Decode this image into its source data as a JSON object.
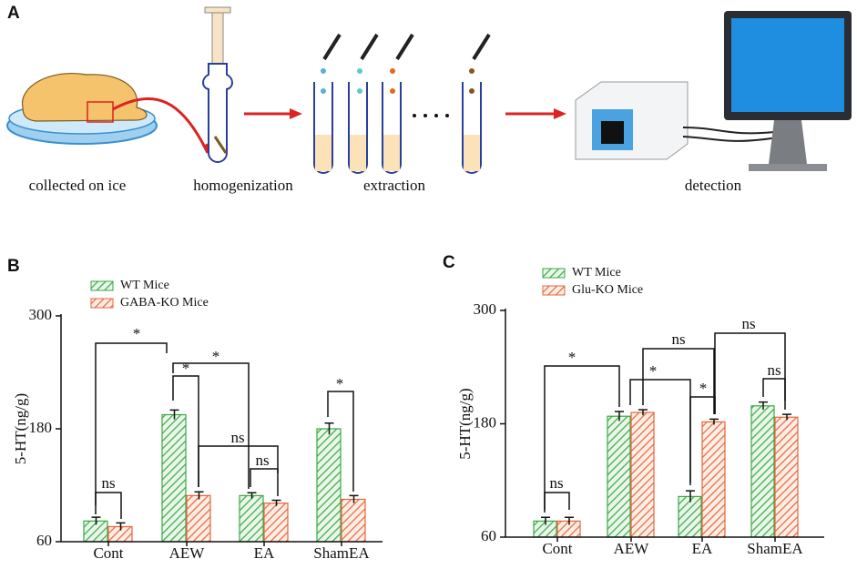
{
  "figure": {
    "panel_a": {
      "label": "A",
      "steps": [
        "collected on ice",
        "homogenization",
        "extraction",
        "detection"
      ]
    }
  },
  "chart_data": [
    {
      "type": "bar",
      "panel_label": "B",
      "ylabel": "5-HT(ng/g)",
      "categories": [
        "Cont",
        "AEW",
        "EA",
        "ShamEA"
      ],
      "series": [
        {
          "name": "WT Mice",
          "color": "#3aa845",
          "values": [
            82,
            195,
            109,
            180
          ],
          "errors": [
            4,
            5,
            3,
            6
          ]
        },
        {
          "name": "GABA-KO Mice",
          "color": "#e8643a",
          "values": [
            76,
            109,
            101,
            105
          ],
          "errors": [
            4,
            4,
            3,
            4
          ]
        }
      ],
      "ylim": [
        60,
        300
      ],
      "yticks": [
        60,
        180,
        300
      ],
      "annotations": [
        "*",
        "*",
        "*",
        "ns",
        "ns",
        "ns",
        "*"
      ]
    },
    {
      "type": "bar",
      "panel_label": "C",
      "ylabel": "5-HT(ng/g)",
      "categories": [
        "Cont",
        "AEW",
        "EA",
        "ShamEA"
      ],
      "series": [
        {
          "name": "WT Mice",
          "color": "#3aa845",
          "values": [
            77,
            188,
            103,
            199
          ],
          "errors": [
            4,
            5,
            6,
            4
          ]
        },
        {
          "name": "Glu-KO Mice",
          "color": "#e8643a",
          "values": [
            77,
            192,
            182,
            187
          ],
          "errors": [
            4,
            3,
            3,
            3
          ]
        }
      ],
      "ylim": [
        60,
        300
      ],
      "yticks": [
        60,
        180,
        300
      ],
      "annotations": [
        "*",
        "ns",
        "*",
        "*",
        "ns",
        "ns",
        "ns"
      ]
    }
  ]
}
